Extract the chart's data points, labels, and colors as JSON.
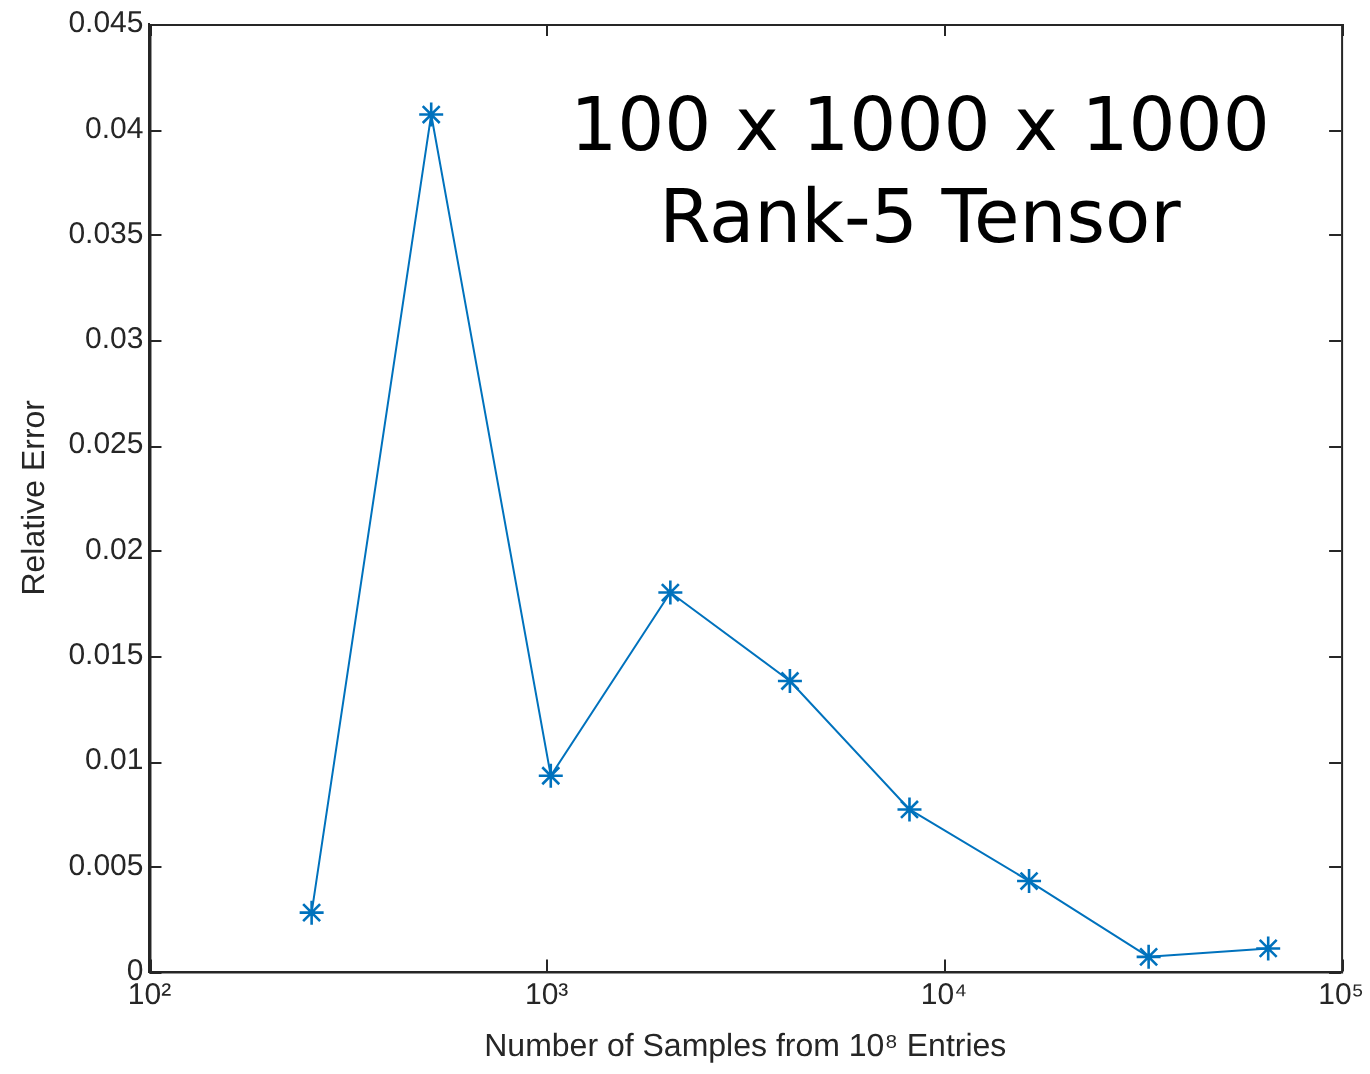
{
  "chart_data": {
    "type": "line",
    "xlabel": "Number of Samples from 10⁸ Entries",
    "ylabel": "Relative Error",
    "annotations": [
      "100 x 1000 x 1000\nRank-5 Tensor"
    ],
    "x": [
      256,
      512,
      1024,
      2048,
      4096,
      8192,
      16384,
      32768,
      65536
    ],
    "series": [
      {
        "color": "#0072bd",
        "values": [
          0.0028,
          0.0407,
          0.0093,
          0.018,
          0.0138,
          0.0077,
          0.0043,
          0.0007,
          0.0011
        ]
      }
    ],
    "log": "x",
    "xlim": [
      100,
      100000
    ],
    "xticks": [
      {
        "value": 100,
        "label": "10²"
      },
      {
        "value": 1000,
        "label": "10³"
      },
      {
        "value": 10000,
        "label": "10⁴"
      },
      {
        "value": 100000,
        "label": "10⁵"
      }
    ],
    "ylim": [
      0,
      0.045
    ],
    "yticks": [
      0,
      0.005,
      0.01,
      0.015,
      0.02,
      0.025,
      0.03,
      0.035,
      0.04,
      0.045
    ],
    "grid": false,
    "legend": false,
    "marker": "cross",
    "line_style": "solid"
  }
}
